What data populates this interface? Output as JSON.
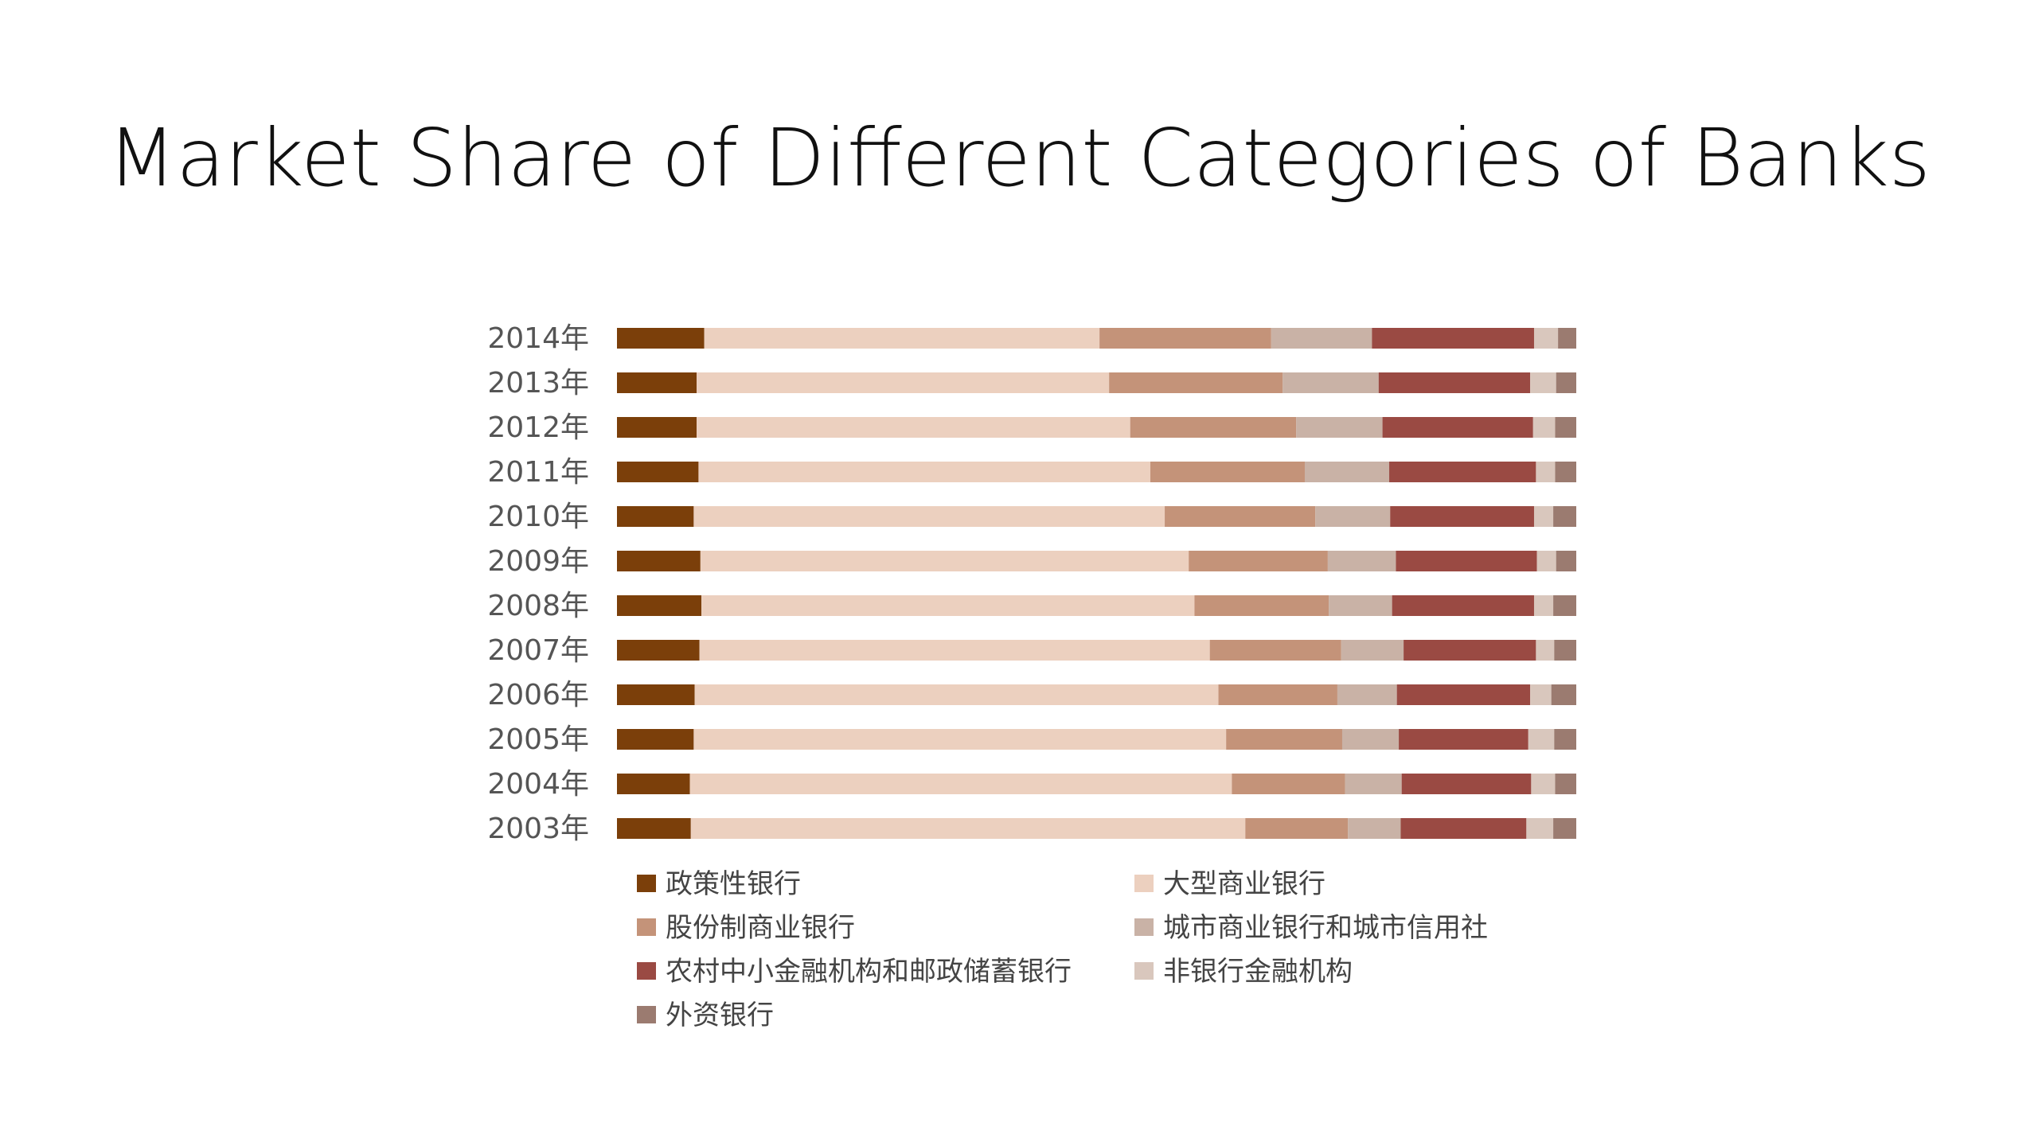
{
  "slide": {
    "title": "Market Share of Different Categories of Banks"
  },
  "chart_data": {
    "type": "bar",
    "orientation": "horizontal",
    "stacked": true,
    "normalized": true,
    "categories": [
      "2014年",
      "2013年",
      "2012年",
      "2011年",
      "2010年",
      "2009年",
      "2008年",
      "2007年",
      "2006年",
      "2005年",
      "2004年",
      "2003年"
    ],
    "series": [
      {
        "name": "政策性银行",
        "color": "#7b3f0a",
        "values": [
          0.091,
          0.083,
          0.083,
          0.085,
          0.08,
          0.087,
          0.088,
          0.086,
          0.081,
          0.08,
          0.076,
          0.077
        ]
      },
      {
        "name": "大型商业银行",
        "color": "#ecd0bf",
        "values": [
          0.412,
          0.43,
          0.452,
          0.471,
          0.491,
          0.509,
          0.514,
          0.532,
          0.546,
          0.555,
          0.565,
          0.578
        ]
      },
      {
        "name": "股份制商业银行",
        "color": "#c49379",
        "values": [
          0.179,
          0.181,
          0.173,
          0.161,
          0.157,
          0.145,
          0.14,
          0.137,
          0.124,
          0.121,
          0.118,
          0.107
        ]
      },
      {
        "name": "城市商业银行和城市信用社",
        "color": "#c9b2a6",
        "values": [
          0.105,
          0.1,
          0.09,
          0.088,
          0.078,
          0.071,
          0.066,
          0.065,
          0.062,
          0.059,
          0.059,
          0.055
        ]
      },
      {
        "name": "农村中小金融机构和邮政储蓄银行",
        "color": "#9a4a43",
        "values": [
          0.169,
          0.158,
          0.157,
          0.153,
          0.15,
          0.147,
          0.148,
          0.138,
          0.139,
          0.135,
          0.135,
          0.131
        ]
      },
      {
        "name": "非银行金融机构",
        "color": "#d9c7bd",
        "values": [
          0.025,
          0.027,
          0.023,
          0.02,
          0.02,
          0.02,
          0.02,
          0.019,
          0.022,
          0.027,
          0.025,
          0.028
        ]
      },
      {
        "name": "外资银行",
        "color": "#9b7b70",
        "values": [
          0.019,
          0.021,
          0.022,
          0.022,
          0.024,
          0.021,
          0.024,
          0.023,
          0.026,
          0.023,
          0.022,
          0.024
        ]
      }
    ],
    "xlim": [
      0,
      1
    ],
    "grid": false,
    "legend_position": "bottom"
  }
}
